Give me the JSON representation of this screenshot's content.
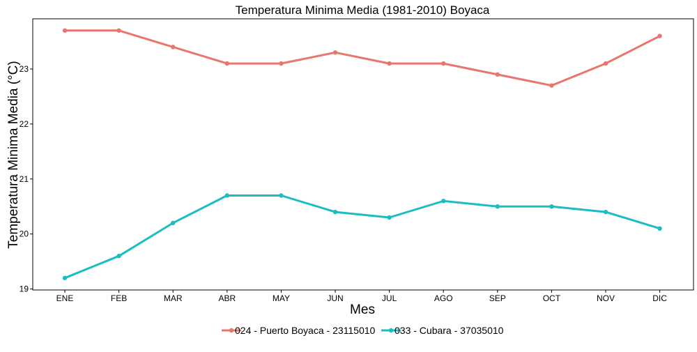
{
  "chart_data": {
    "type": "line",
    "title": "Temperatura Minima Media (1981-2010)  Boyaca",
    "xlabel": "Mes",
    "ylabel": "Temperatura Minima Media  (°C)",
    "categories": [
      "ENE",
      "FEB",
      "MAR",
      "ABR",
      "MAY",
      "JUN",
      "JUL",
      "AGO",
      "SEP",
      "OCT",
      "NOV",
      "DIC"
    ],
    "yticks": [
      "19",
      "20",
      "21",
      "22",
      "23"
    ],
    "ylim": [
      19,
      23.8
    ],
    "grid": false,
    "legend_position": "bottom",
    "series": [
      {
        "name": "024 - Puerto Boyaca - 23115010",
        "color": "#e8766d",
        "values": [
          23.7,
          23.7,
          23.4,
          23.1,
          23.1,
          23.3,
          23.1,
          23.1,
          22.9,
          22.7,
          23.1,
          23.6
        ]
      },
      {
        "name": "033 - Cubara - 37035010",
        "color": "#1cbdc2",
        "values": [
          19.2,
          19.6,
          20.2,
          20.7,
          20.7,
          20.4,
          20.3,
          20.6,
          20.5,
          20.5,
          20.4,
          20.1
        ]
      }
    ]
  }
}
